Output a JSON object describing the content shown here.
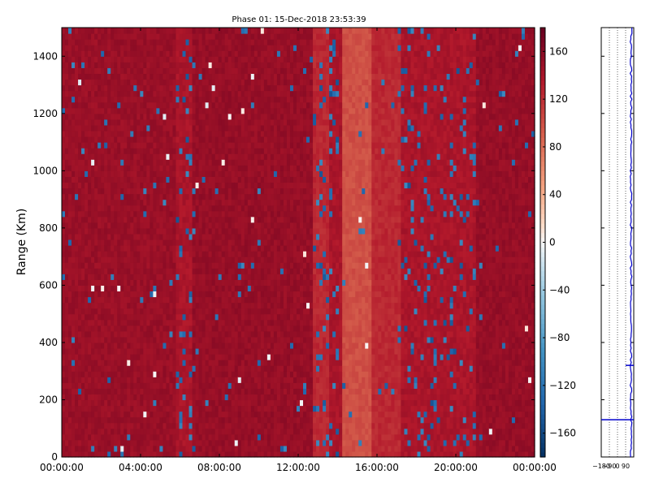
{
  "chart_data": {
    "type": "heatmap",
    "title": "Phase 01: 15-Dec-2018 23:53:39",
    "xlabel": "",
    "ylabel": "Range (Km)",
    "x_ticks": [
      "00:00:00",
      "04:00:00",
      "08:00:00",
      "12:00:00",
      "16:00:00",
      "20:00:00",
      "00:00:00"
    ],
    "x_range_hours": [
      0,
      24
    ],
    "y_ticks": [
      0,
      200,
      400,
      600,
      800,
      1000,
      1200,
      1400
    ],
    "ylim": [
      0,
      1500
    ],
    "colorbar": {
      "ticks": [
        160,
        120,
        80,
        40,
        0,
        -40,
        -80,
        -120,
        -160
      ],
      "range": [
        -180,
        180
      ]
    },
    "base_phase": 150,
    "bands": [
      {
        "start_h": 0.0,
        "end_h": 5.8,
        "level": 150
      },
      {
        "start_h": 5.8,
        "end_h": 6.6,
        "level": 140
      },
      {
        "start_h": 6.6,
        "end_h": 12.8,
        "level": 152
      },
      {
        "start_h": 12.8,
        "end_h": 13.6,
        "level": 125
      },
      {
        "start_h": 13.6,
        "end_h": 14.3,
        "level": 140
      },
      {
        "start_h": 14.3,
        "end_h": 15.7,
        "level": 100
      },
      {
        "start_h": 15.7,
        "end_h": 17.2,
        "level": 125
      },
      {
        "start_h": 17.2,
        "end_h": 21.0,
        "level": 140
      },
      {
        "start_h": 21.0,
        "end_h": 24.0,
        "level": 152
      }
    ],
    "side_panel": {
      "type": "line",
      "x_ticks": [
        "-180",
        "-90",
        "0",
        "90"
      ],
      "xlim": [
        -180,
        180
      ],
      "markers_km": [
        320,
        130
      ]
    }
  }
}
